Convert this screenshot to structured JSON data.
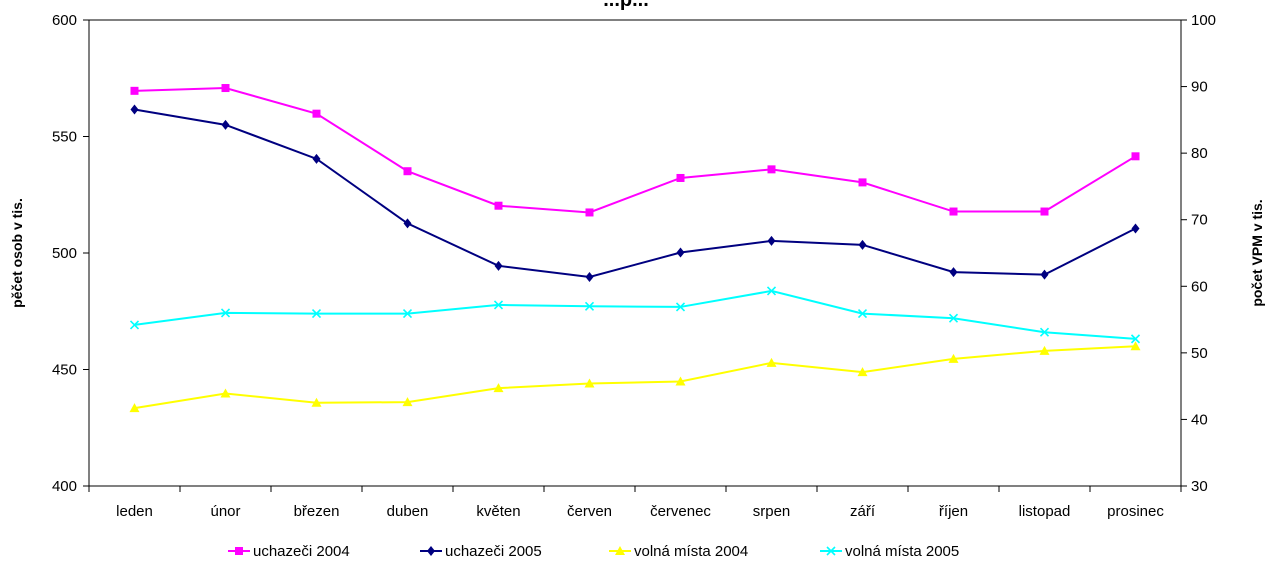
{
  "chart_data": {
    "type": "line",
    "title": "...p...",
    "categories": [
      "leden",
      "únor",
      "březen",
      "duben",
      "květen",
      "červen",
      "červenec",
      "srpen",
      "září",
      "říjen",
      "listopad",
      "prosinec"
    ],
    "y_left": {
      "label": "pěčet osob v tis.",
      "ylim": [
        400,
        600
      ],
      "ticks": [
        400,
        450,
        500,
        550,
        600
      ]
    },
    "y_right": {
      "label": "počet VPM v tis.",
      "ylim": [
        30,
        100
      ],
      "ticks": [
        30,
        40,
        50,
        60,
        70,
        80,
        90,
        100
      ]
    },
    "grid": false,
    "legend_position": "bottom",
    "series": [
      {
        "name": "uchazeči 2004",
        "axis": "left",
        "color": "#ff00ff",
        "marker": "square",
        "values": [
          569.6,
          570.8,
          559.8,
          535.1,
          520.3,
          517.4,
          532.2,
          535.9,
          530.3,
          517.8,
          517.8,
          541.5
        ]
      },
      {
        "name": "uchazeči 2005",
        "axis": "left",
        "color": "#000080",
        "marker": "diamond",
        "values": [
          561.6,
          555.0,
          540.4,
          512.7,
          494.5,
          489.7,
          500.2,
          505.2,
          503.5,
          491.8,
          490.7,
          510.5
        ]
      },
      {
        "name": "volná místa 2004",
        "axis": "right",
        "color": "#ffff00",
        "marker": "triangle",
        "values": [
          41.7,
          43.9,
          42.5,
          42.6,
          44.7,
          45.4,
          45.7,
          48.5,
          47.1,
          49.1,
          50.3,
          51.0
        ]
      },
      {
        "name": "volná místa 2005",
        "axis": "right",
        "color": "#00ffff",
        "marker": "x",
        "values": [
          54.2,
          56.0,
          55.9,
          55.9,
          57.2,
          57.0,
          56.9,
          59.3,
          55.9,
          55.2,
          53.1,
          52.1
        ]
      }
    ]
  }
}
